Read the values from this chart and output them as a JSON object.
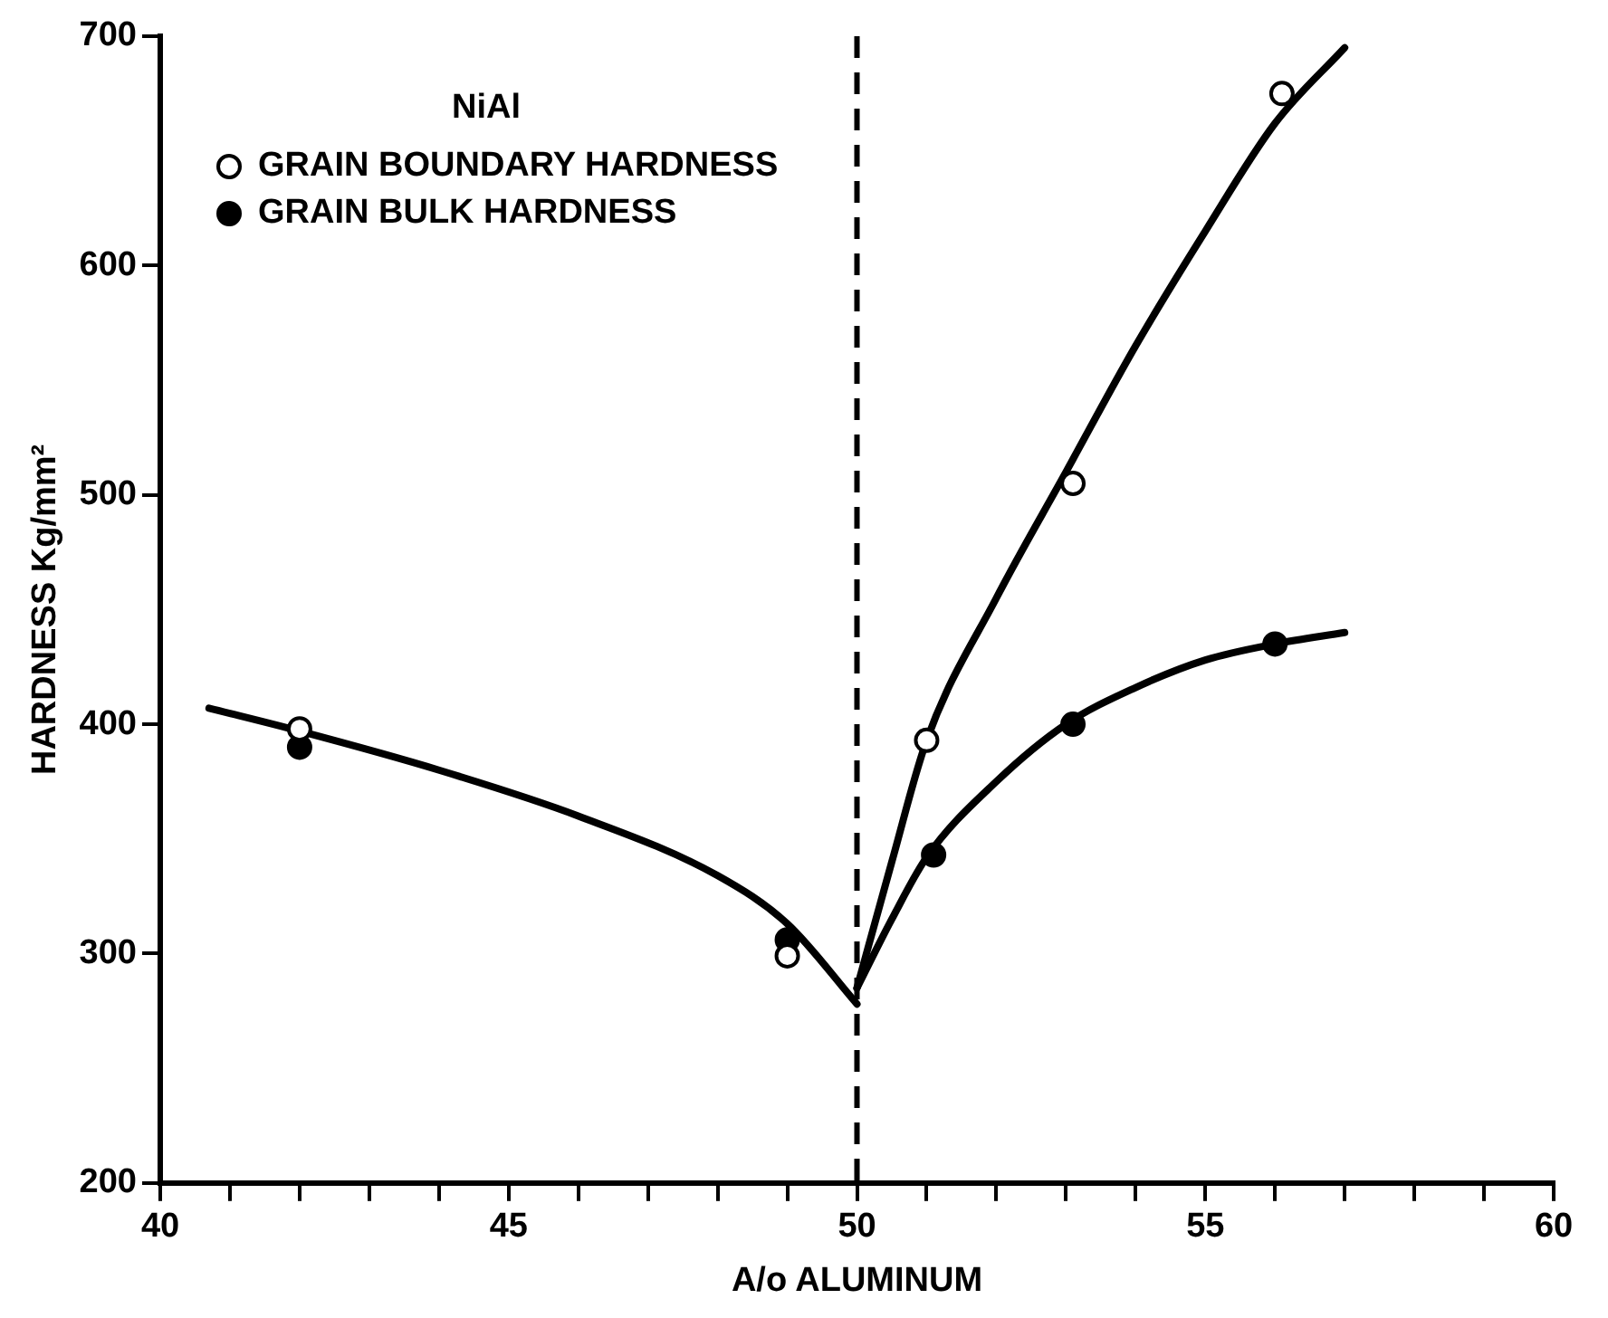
{
  "chart_data": {
    "type": "scatter",
    "xlabel": "A/o ALUMINUM",
    "ylabel": "HARDNESS Kg/mm²",
    "legend_title": "NiAl",
    "xlim": [
      40,
      60
    ],
    "xticks": [
      40,
      {
        "value": 41,
        "label": null
      },
      {
        "value": 42,
        "label": null
      },
      {
        "value": 43,
        "label": null
      },
      {
        "value": 44,
        "label": null
      },
      45,
      {
        "value": 46,
        "label": null
      },
      {
        "value": 47,
        "label": null
      },
      {
        "value": 48,
        "label": null
      },
      {
        "value": 49,
        "label": null
      },
      50,
      {
        "value": 51,
        "label": null
      },
      {
        "value": 52,
        "label": null
      },
      {
        "value": 53,
        "label": null
      },
      {
        "value": 54,
        "label": null
      },
      55,
      {
        "value": 56,
        "label": null
      },
      {
        "value": 57,
        "label": null
      },
      {
        "value": 58,
        "label": null
      },
      {
        "value": 59,
        "label": null
      },
      60
    ],
    "ylim": [
      200,
      700
    ],
    "yticks": [
      200,
      300,
      400,
      500,
      600,
      700
    ],
    "grid": false,
    "legend": "top left",
    "marker": "circle",
    "ref_lines": [
      {
        "axis": "x",
        "value": 50,
        "line_style": "dashed",
        "color": "#000000"
      }
    ],
    "series": [
      {
        "name": "GRAIN BOUNDARY HARDNESS",
        "color": "#000000",
        "x": [
          42,
          49,
          51,
          53.1,
          56.1
        ],
        "values": [
          398,
          299,
          393,
          505,
          675
        ]
      },
      {
        "name": "GRAIN BULK HARDNESS",
        "color": "#000000",
        "x": [
          42,
          49,
          51.1,
          53.1,
          56
        ],
        "values": [
          390,
          306,
          343,
          400,
          435
        ]
      },
      {
        "type": "line",
        "color": "#000000",
        "marker": "none",
        "x": [
          40.7,
          42,
          44,
          46,
          48,
          49,
          50
        ],
        "values": [
          407,
          397,
          380,
          360,
          334,
          313,
          278
        ]
      },
      {
        "type": "line",
        "color": "#000000",
        "marker": "none",
        "x": [
          50,
          50.5,
          51,
          52,
          53,
          54,
          55,
          56,
          57
        ],
        "values": [
          285,
          340,
          393,
          455,
          510,
          565,
          615,
          662,
          695
        ]
      },
      {
        "type": "line",
        "color": "#000000",
        "marker": "none",
        "x": [
          50,
          50.5,
          51,
          52,
          53,
          54,
          55,
          56,
          57
        ],
        "values": [
          285,
          315,
          342,
          375,
          400,
          416,
          428,
          435,
          440
        ]
      }
    ]
  }
}
